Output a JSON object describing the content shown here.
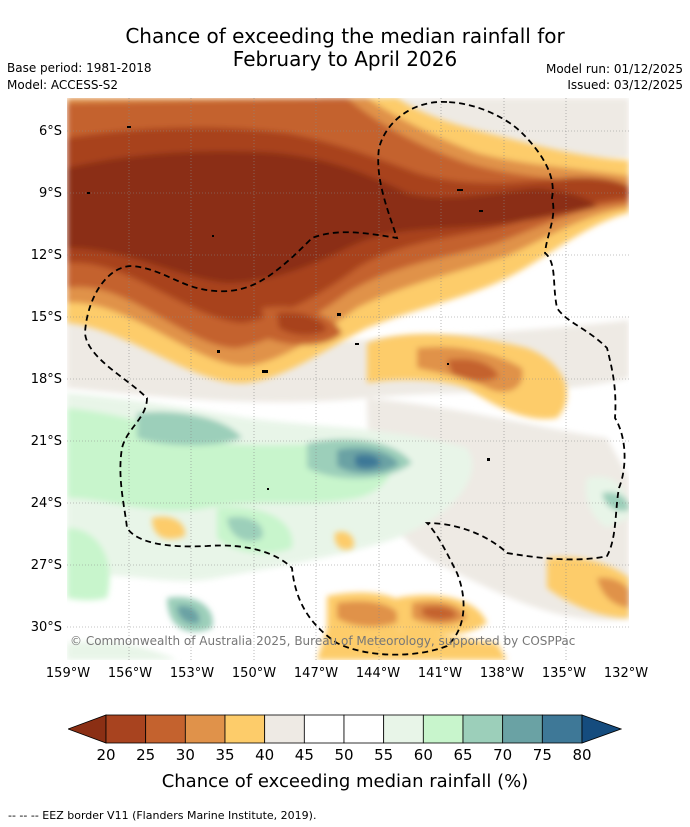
{
  "title": {
    "line1": "Chance of exceeding the median rainfall for",
    "line2": "February to April 2026"
  },
  "meta": {
    "base_period": "Base period: 1981-2018",
    "model": "Model: ACCESS-S2",
    "model_run": "Model run: 01/12/2025",
    "issued": "Issued: 03/12/2025"
  },
  "map": {
    "lat_labels": [
      "6°S",
      "9°S",
      "12°S",
      "15°S",
      "18°S",
      "21°S",
      "24°S",
      "27°S",
      "30°S"
    ],
    "lon_labels": [
      "159°W",
      "156°W",
      "153°W",
      "150°W",
      "147°W",
      "144°W",
      "141°W",
      "138°W",
      "135°W",
      "132°W"
    ],
    "copyright": "© Commonwealth of Australia 2025, Bureau of Meteorology, supported by COSPPac"
  },
  "colorbar": {
    "ticks": [
      "20",
      "25",
      "30",
      "35",
      "40",
      "45",
      "50",
      "55",
      "60",
      "65",
      "70",
      "75",
      "80"
    ],
    "colors": [
      "#8b2f14",
      "#a8431f",
      "#c4622e",
      "#e0924a",
      "#fdcc6a",
      "#eeeae4",
      "#ffffff",
      "#ffffff",
      "#e8f5e8",
      "#c8f5cc",
      "#9ccfba",
      "#6aa2a4",
      "#3e7897",
      "#154c7e"
    ],
    "title": "Chance of exceeding median rainfall (%)"
  },
  "legend": {
    "text": "--  --  -- EEZ border V11 (Flanders Marine Institute, 2019)."
  }
}
